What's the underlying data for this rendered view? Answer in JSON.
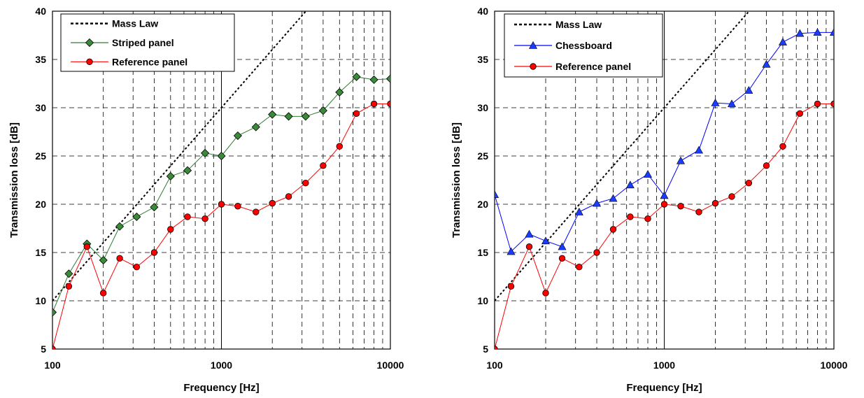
{
  "chart_data": [
    {
      "type": "line",
      "xscale": "log",
      "xlim": [
        100,
        10000
      ],
      "ylim": [
        5,
        40
      ],
      "xticks": [
        100,
        1000,
        10000
      ],
      "yticks": [
        5,
        10,
        15,
        20,
        25,
        30,
        35,
        40
      ],
      "xtick_labels": [
        "100",
        "1000",
        "10000"
      ],
      "ytick_labels": [
        "5",
        "10",
        "15",
        "20",
        "25",
        "30",
        "35",
        "40"
      ],
      "xlabel": "Frequency [Hz]",
      "ylabel": "Transmission loss [dB]",
      "grid": true,
      "legend_position": "top-left",
      "series": [
        {
          "name": "Mass Law",
          "style": "dotted",
          "color": "#000000",
          "marker": "none",
          "x": [
            100,
            3162
          ],
          "y": [
            10,
            40
          ]
        },
        {
          "name": "Striped panel",
          "style": "solid",
          "color": "#2e7d32",
          "marker_fill": "#3a8a3a",
          "marker": "diamond",
          "x": [
            100,
            125,
            160,
            200,
            250,
            315,
            400,
            500,
            630,
            800,
            1000,
            1250,
            1600,
            2000,
            2500,
            3150,
            4000,
            5000,
            6300,
            8000,
            10000
          ],
          "y": [
            8.8,
            12.8,
            15.9,
            14.2,
            17.7,
            18.7,
            19.7,
            22.9,
            23.5,
            25.3,
            25.0,
            27.1,
            28.0,
            29.3,
            29.1,
            29.1,
            29.7,
            31.6,
            33.2,
            32.9,
            33.0
          ]
        },
        {
          "name": "Reference panel",
          "style": "solid",
          "color": "#ff0000",
          "marker_fill": "#ff0000",
          "marker": "circle",
          "x": [
            100,
            125,
            160,
            200,
            250,
            315,
            400,
            500,
            630,
            800,
            1000,
            1250,
            1600,
            2000,
            2500,
            3150,
            4000,
            5000,
            6300,
            8000,
            10000
          ],
          "y": [
            5.0,
            11.5,
            15.6,
            10.8,
            14.4,
            13.5,
            15.0,
            17.4,
            18.7,
            18.5,
            20.0,
            19.8,
            19.2,
            20.1,
            20.8,
            22.2,
            24.0,
            26.0,
            29.4,
            30.4,
            30.4
          ]
        }
      ]
    },
    {
      "type": "line",
      "xscale": "log",
      "xlim": [
        100,
        10000
      ],
      "ylim": [
        5,
        40
      ],
      "xticks": [
        100,
        1000,
        10000
      ],
      "yticks": [
        5,
        10,
        15,
        20,
        25,
        30,
        35,
        40
      ],
      "xtick_labels": [
        "100",
        "1000",
        "10000"
      ],
      "ytick_labels": [
        "5",
        "10",
        "15",
        "20",
        "25",
        "30",
        "35",
        "40"
      ],
      "xlabel": "Frequency [Hz]",
      "ylabel": "Transmission loss [dB]",
      "grid": true,
      "legend_position": "top-left",
      "series": [
        {
          "name": "Mass Law",
          "style": "dotted",
          "color": "#000000",
          "marker": "none",
          "x": [
            100,
            3162
          ],
          "y": [
            10,
            40
          ]
        },
        {
          "name": "Chessboard",
          "style": "solid",
          "color": "#0000ff",
          "marker_fill": "#1a3cff",
          "marker": "triangle",
          "x": [
            100,
            125,
            160,
            200,
            250,
            315,
            400,
            500,
            630,
            800,
            1000,
            1250,
            1600,
            2000,
            2500,
            3150,
            4000,
            5000,
            6300,
            8000,
            10000
          ],
          "y": [
            21.0,
            15.1,
            16.9,
            16.2,
            15.6,
            19.2,
            20.1,
            20.6,
            22.0,
            23.1,
            20.9,
            24.5,
            25.6,
            30.5,
            30.4,
            31.8,
            34.5,
            36.8,
            37.7,
            37.8,
            37.8
          ]
        },
        {
          "name": "Reference panel",
          "style": "solid",
          "color": "#ff0000",
          "marker_fill": "#ff0000",
          "marker": "circle",
          "x": [
            100,
            125,
            160,
            200,
            250,
            315,
            400,
            500,
            630,
            800,
            1000,
            1250,
            1600,
            2000,
            2500,
            3150,
            4000,
            5000,
            6300,
            8000,
            10000
          ],
          "y": [
            5.0,
            11.5,
            15.6,
            10.8,
            14.4,
            13.5,
            15.0,
            17.4,
            18.7,
            18.5,
            20.0,
            19.8,
            19.2,
            20.1,
            20.8,
            22.2,
            24.0,
            26.0,
            29.4,
            30.4,
            30.4
          ]
        }
      ]
    }
  ]
}
